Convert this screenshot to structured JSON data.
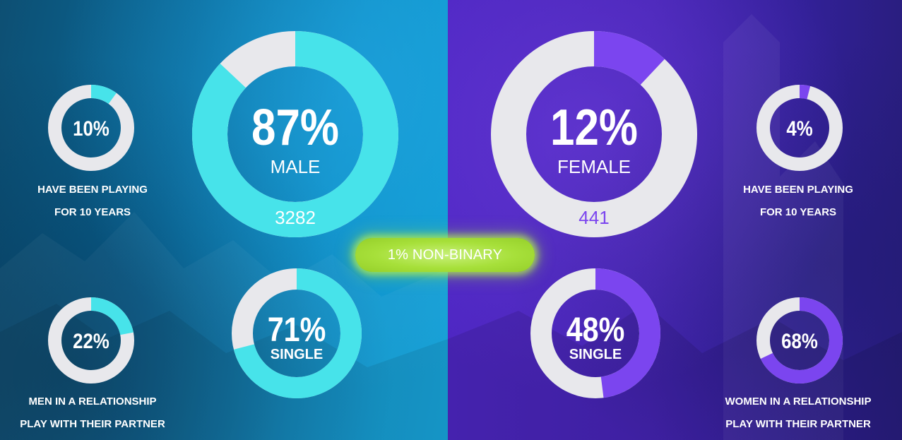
{
  "chart_data": [
    {
      "type": "donut",
      "series_group": "male",
      "charts": [
        {
          "id": "male",
          "value": 87,
          "label": "87%",
          "caption": "MALE",
          "count": "3282",
          "color": "#47e3ea",
          "track": "#e8e8ec"
        },
        {
          "id": "male-10-years",
          "value": 10,
          "label": "10%",
          "caption_lines": [
            "HAVE BEEN PLAYING",
            "FOR 10 YEARS"
          ],
          "color": "#47e3ea",
          "track": "#e8e8ec"
        },
        {
          "id": "male-relationship",
          "value": 22,
          "label": "22%",
          "caption_lines": [
            "MEN IN A RELATIONSHIP",
            "PLAY WITH THEIR PARTNER"
          ],
          "color": "#47e3ea",
          "track": "#e8e8ec"
        },
        {
          "id": "male-single",
          "value": 71,
          "label": "71%",
          "caption": "SINGLE",
          "color": "#47e3ea",
          "track": "#e8e8ec"
        }
      ]
    },
    {
      "type": "donut",
      "series_group": "female",
      "charts": [
        {
          "id": "female",
          "value": 12,
          "label": "12%",
          "caption": "FEMALE",
          "count": "441",
          "color": "#7b45ef",
          "track": "#e8e8ec"
        },
        {
          "id": "female-10-years",
          "value": 4,
          "label": "4%",
          "caption_lines": [
            "HAVE  BEEN PLAYING",
            "FOR 10 YEARS"
          ],
          "color": "#7b45ef",
          "track": "#e8e8ec"
        },
        {
          "id": "female-relationship",
          "value": 68,
          "label": "68%",
          "caption_lines": [
            "WOMEN IN A RELATIONSHIP",
            "PLAY WITH THEIR PARTNER"
          ],
          "color": "#7b45ef",
          "track": "#e8e8ec"
        },
        {
          "id": "female-single",
          "value": 48,
          "label": "48%",
          "caption": "SINGLE",
          "color": "#7b45ef",
          "track": "#e8e8ec"
        }
      ]
    }
  ],
  "non_binary": {
    "value": 1,
    "label": "1% NON-BINARY",
    "color": "#a7e03a"
  },
  "captions": {
    "male_10_line1": "HAVE BEEN PLAYING",
    "male_10_line2": "FOR 10 YEARS",
    "male_rel_line1": "MEN IN A RELATIONSHIP",
    "male_rel_line2": "PLAY WITH THEIR PARTNER",
    "female_10_line1": "HAVE  BEEN PLAYING",
    "female_10_line2": "FOR 10 YEARS",
    "female_rel_line1": "WOMEN IN A RELATIONSHIP",
    "female_rel_line2": "PLAY WITH THEIR PARTNER"
  }
}
